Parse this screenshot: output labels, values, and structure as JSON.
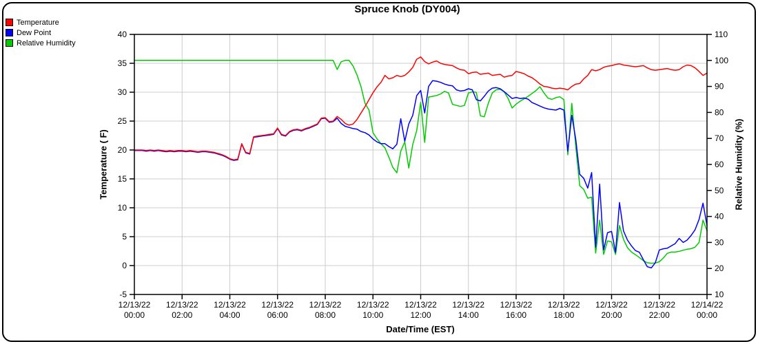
{
  "chart_data": {
    "type": "line",
    "title": "Spruce Knob (DY004)",
    "x_axis": {
      "label": "Date/Time (EST)",
      "start": "12/13/22 00:00",
      "end": "12/14/22 00:00",
      "interval_minutes": 10,
      "ticks": [
        {
          "date": "12/13/22",
          "time": "00:00"
        },
        {
          "date": "12/13/22",
          "time": "02:00"
        },
        {
          "date": "12/13/22",
          "time": "04:00"
        },
        {
          "date": "12/13/22",
          "time": "06:00"
        },
        {
          "date": "12/13/22",
          "time": "08:00"
        },
        {
          "date": "12/13/22",
          "time": "10:00"
        },
        {
          "date": "12/13/22",
          "time": "12:00"
        },
        {
          "date": "12/13/22",
          "time": "14:00"
        },
        {
          "date": "12/13/22",
          "time": "16:00"
        },
        {
          "date": "12/13/22",
          "time": "18:00"
        },
        {
          "date": "12/13/22",
          "time": "20:00"
        },
        {
          "date": "12/13/22",
          "time": "22:00"
        },
        {
          "date": "12/14/22",
          "time": "00:00"
        }
      ]
    },
    "y_left": {
      "label": "Temperature ( F)",
      "min": -5,
      "max": 40,
      "ticks": [
        40,
        35,
        30,
        25,
        20,
        15,
        10,
        5,
        0,
        -5
      ],
      "grid": true
    },
    "y_right": {
      "label": "Relative Humidity (%)",
      "min": 10,
      "max": 110,
      "ticks": [
        110,
        100,
        90,
        80,
        70,
        60,
        50,
        40,
        30,
        20,
        10
      ],
      "grid": false
    },
    "grid_color": "#cccccc",
    "series": [
      {
        "name": "relative-humidity",
        "label": "Relative Humidity",
        "color": "#00cc00",
        "axis": "right",
        "values": [
          100,
          100,
          100,
          100,
          100,
          100,
          100,
          100,
          100,
          100,
          100,
          100,
          100,
          100,
          100,
          100,
          100,
          100,
          100,
          100,
          100,
          100,
          100,
          100,
          100,
          100,
          100,
          100,
          100,
          100,
          100,
          100,
          100,
          100,
          100,
          100,
          100,
          100,
          100,
          100,
          100,
          100,
          100,
          100,
          100,
          100,
          100,
          100,
          100,
          100,
          100,
          96.5,
          99.5,
          100,
          100,
          97.8,
          94.3,
          89.9,
          83.5,
          80.9,
          72.2,
          69.9,
          68.0,
          66.4,
          62.8,
          58.8,
          56.8,
          65.1,
          68.7,
          58.6,
          67.7,
          73.0,
          83.9,
          68.5,
          85.9,
          86.2,
          86.5,
          87.1,
          88.1,
          87.5,
          83.1,
          82.7,
          82.3,
          82.7,
          87.5,
          87.9,
          87.7,
          78.7,
          78.3,
          83.5,
          87.5,
          88.7,
          88.9,
          87.9,
          85.3,
          81.7,
          83.2,
          84.3,
          85.2,
          86.2,
          87.3,
          88.4,
          89.9,
          87.5,
          85.5,
          85.0,
          85.7,
          86.0,
          84.9,
          63.7,
          83.5,
          66.8,
          51.8,
          50.4,
          47.0,
          47.4,
          25.9,
          38.6,
          25.4,
          30.6,
          30.2,
          25.4,
          36.5,
          31.2,
          28.0,
          26.3,
          25.3,
          24.2,
          23.0,
          22.2,
          22.0,
          22.1,
          22.6,
          24.0,
          25.8,
          26.3,
          26.3,
          26.6,
          27.0,
          27.4,
          27.6,
          28.2,
          30.0,
          38.6,
          34.5
        ]
      },
      {
        "name": "dew-point",
        "label": "Dew Point",
        "color": "#0000ff",
        "axis": "left",
        "values": [
          19.9,
          19.9,
          19.9,
          19.8,
          19.9,
          19.8,
          19.9,
          19.8,
          19.7,
          19.8,
          19.7,
          19.8,
          19.8,
          19.7,
          19.8,
          19.7,
          19.6,
          19.7,
          19.7,
          19.6,
          19.5,
          19.3,
          19.1,
          18.8,
          18.4,
          18.2,
          18.3,
          21.0,
          19.5,
          19.3,
          22.2,
          22.3,
          22.4,
          22.5,
          22.6,
          22.7,
          23.7,
          22.6,
          22.4,
          23.1,
          23.4,
          23.5,
          23.3,
          23.6,
          23.8,
          24.1,
          24.4,
          25.4,
          25.5,
          24.8,
          24.9,
          25.5,
          24.6,
          24.1,
          23.9,
          23.7,
          23.6,
          23.2,
          23.0,
          22.6,
          21.9,
          21.4,
          21.1,
          21.1,
          20.6,
          20.2,
          21.0,
          25.4,
          21.5,
          24.5,
          26.0,
          29.4,
          30.3,
          26.4,
          31.0,
          32.0,
          31.9,
          31.7,
          31.4,
          31.2,
          31.1,
          30.4,
          30.2,
          30.3,
          30.6,
          30.4,
          28.7,
          28.5,
          29.3,
          30.2,
          30.7,
          30.8,
          30.6,
          30.1,
          29.5,
          28.9,
          29.1,
          28.9,
          29.0,
          28.8,
          28.2,
          27.9,
          27.6,
          27.3,
          27.1,
          27.0,
          26.9,
          27.2,
          26.9,
          19.8,
          26.0,
          21.8,
          15.8,
          15.1,
          13.4,
          16.1,
          3.2,
          14.1,
          2.7,
          5.7,
          5.9,
          2.3,
          10.9,
          6.0,
          4.4,
          3.4,
          2.6,
          2.3,
          1.0,
          -0.2,
          -0.4,
          0.5,
          2.7,
          2.9,
          3.0,
          3.4,
          3.8,
          4.7,
          4.0,
          4.4,
          5.2,
          6.2,
          8.0,
          10.8,
          6.9
        ]
      },
      {
        "name": "temperature",
        "label": "Temperature",
        "color": "#ff0000",
        "axis": "left",
        "values": [
          20,
          20,
          20,
          19.9,
          20,
          19.9,
          20,
          19.9,
          19.8,
          19.9,
          19.8,
          19.9,
          19.9,
          19.8,
          19.9,
          19.8,
          19.7,
          19.8,
          19.8,
          19.7,
          19.6,
          19.4,
          19.2,
          18.9,
          18.5,
          18.3,
          18.4,
          21.1,
          19.6,
          19.4,
          22.3,
          22.4,
          22.5,
          22.6,
          22.7,
          22.8,
          23.8,
          22.7,
          22.5,
          23.2,
          23.5,
          23.6,
          23.4,
          23.7,
          23.9,
          24.2,
          24.5,
          25.5,
          25.6,
          24.9,
          25.0,
          25.8,
          25.3,
          24.6,
          24.3,
          24.5,
          25.3,
          26.4,
          27.5,
          28.7,
          29.9,
          30.9,
          31.7,
          32.9,
          32.3,
          32.5,
          32.9,
          32.7,
          32.9,
          33.5,
          34.3,
          35.7,
          36.1,
          35.3,
          34.9,
          35.2,
          35.4,
          35.0,
          34.8,
          34.7,
          34.6,
          34.2,
          33.9,
          33.8,
          33.2,
          33.4,
          33.5,
          33.1,
          33.2,
          33.3,
          32.9,
          33.0,
          33.1,
          32.6,
          32.8,
          32.9,
          33.6,
          33.4,
          33.2,
          32.8,
          32.5,
          32.0,
          31.4,
          31.0,
          30.9,
          30.7,
          30.6,
          30.7,
          30.6,
          30.4,
          31.0,
          31.4,
          31.5,
          32.3,
          32.9,
          33.9,
          33.7,
          33.9,
          34.3,
          34.5,
          34.6,
          34.8,
          34.9,
          34.7,
          34.6,
          34.5,
          34.4,
          34.5,
          34.6,
          34.2,
          33.9,
          33.8,
          33.9,
          34.0,
          34.1,
          33.9,
          33.8,
          33.9,
          34.4,
          34.7,
          34.6,
          34.2,
          33.6,
          32.9,
          33.3
        ]
      }
    ]
  }
}
